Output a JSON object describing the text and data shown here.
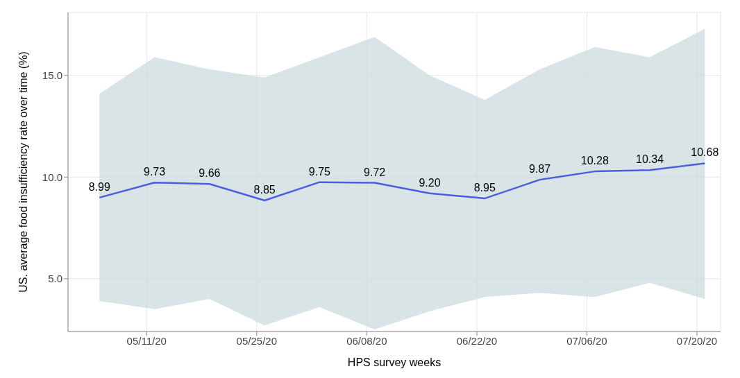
{
  "chart_data": {
    "type": "line",
    "xlabel": "HPS survey weeks",
    "ylabel": "US. average food insufficiency rate over time (%)",
    "x": [
      "--05-05",
      "--05-12",
      "--05-19",
      "--05-26",
      "--06-02",
      "--06-09",
      "--06-16",
      "--06-23",
      "--06-30",
      "--07-07",
      "--07-14",
      "--07-21"
    ],
    "series": [
      {
        "color": "#4a5fe0",
        "values": [
          8.99,
          9.73,
          9.66,
          8.85,
          9.75,
          9.72,
          9.2,
          8.95,
          9.87,
          10.28,
          10.34,
          10.68
        ],
        "value_labels": [
          "8.99",
          "9.73",
          "9.66",
          "8.85",
          "9.75",
          "9.72",
          "9.20",
          "8.95",
          "9.87",
          "10.28",
          "10.34",
          "10.68"
        ],
        "lower": [
          3.9,
          3.5,
          4.0,
          2.7,
          3.6,
          2.5,
          3.4,
          4.1,
          4.3,
          4.1,
          4.8,
          4.0
        ],
        "upper": [
          14.1,
          15.9,
          15.3,
          14.9,
          15.9,
          16.9,
          15.0,
          13.8,
          15.3,
          16.4,
          15.9,
          17.3
        ]
      }
    ],
    "xlim": [
      "--05-01",
      "--07-23"
    ],
    "xticks": [
      {
        "value": "--05-11",
        "label": "05/11/20"
      },
      {
        "value": "--05-25",
        "label": "05/25/20"
      },
      {
        "value": "--06-08",
        "label": "06/08/20"
      },
      {
        "value": "--06-22",
        "label": "06/22/20"
      },
      {
        "value": "--07-06",
        "label": "07/06/20"
      },
      {
        "value": "--07-20",
        "label": "07/20/20"
      }
    ],
    "ylim": [
      2.4,
      18.1
    ],
    "yticks": [
      {
        "value": 5,
        "label": "5.0"
      },
      {
        "value": 10,
        "label": "10.0"
      },
      {
        "value": 15,
        "label": "15.0"
      }
    ],
    "grid": true,
    "marker": "none",
    "line_style": "solid"
  }
}
